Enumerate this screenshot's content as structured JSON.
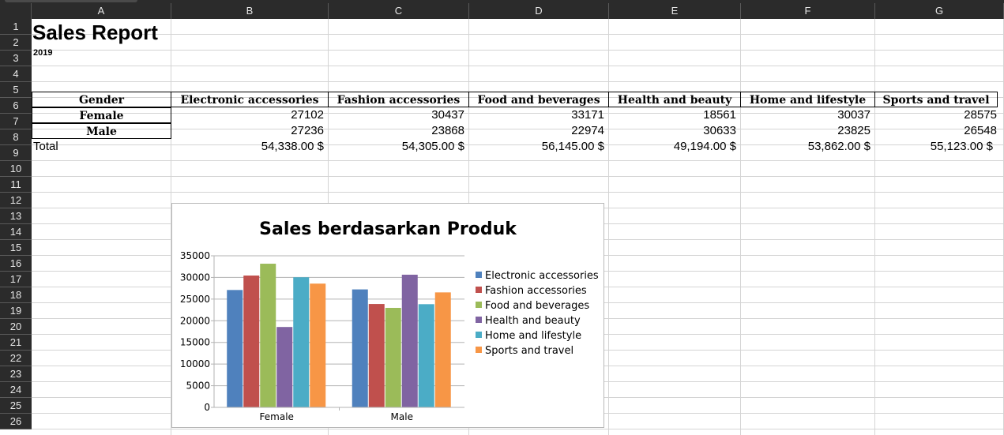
{
  "sheet": {
    "columns": [
      "A",
      "B",
      "C",
      "D",
      "E",
      "F",
      "G"
    ],
    "rows": [
      "1",
      "2",
      "3",
      "4",
      "5",
      "6",
      "7",
      "8",
      "9",
      "10",
      "11",
      "12",
      "13",
      "14",
      "15",
      "16",
      "17",
      "18",
      "19",
      "20",
      "21",
      "22",
      "23",
      "24",
      "25",
      "26"
    ],
    "title": "Sales Report",
    "subtitle": "2019",
    "table": {
      "header": [
        "Gender",
        "Electronic accessories",
        "Fashion accessories",
        "Food and beverages",
        "Health and beauty",
        "Home and lifestyle",
        "Sports and travel"
      ],
      "rows": [
        {
          "label": "Female",
          "values": [
            "27102",
            "30437",
            "33171",
            "18561",
            "30037",
            "28575"
          ]
        },
        {
          "label": "Male",
          "values": [
            "27236",
            "23868",
            "22974",
            "30633",
            "23825",
            "26548"
          ]
        }
      ],
      "total_label": "Total",
      "totals": [
        "54,338.00 $",
        "54,305.00 $",
        "56,145.00 $",
        "49,194.00 $",
        "53,862.00 $",
        "55,123.00 $"
      ]
    }
  },
  "chart_data": {
    "type": "bar",
    "title": "Sales berdasarkan Produk",
    "categories": [
      "Female",
      "Male"
    ],
    "series": [
      {
        "name": "Electronic accessories",
        "color": "#4f81bd",
        "values": [
          27102,
          27236
        ]
      },
      {
        "name": "Fashion accessories",
        "color": "#c0504d",
        "values": [
          30437,
          23868
        ]
      },
      {
        "name": "Food and beverages",
        "color": "#9bbb59",
        "values": [
          33171,
          22974
        ]
      },
      {
        "name": "Health and beauty",
        "color": "#8064a2",
        "values": [
          18561,
          30633
        ]
      },
      {
        "name": "Home and lifestyle",
        "color": "#4bacc6",
        "values": [
          30037,
          23825
        ]
      },
      {
        "name": "Sports and travel",
        "color": "#f79646",
        "values": [
          28575,
          26548
        ]
      }
    ],
    "yticks": [
      "35000",
      "30000",
      "25000",
      "20000",
      "15000",
      "10000",
      "5000",
      "0"
    ],
    "ylim": [
      0,
      35000
    ],
    "legend": "right",
    "grid": true
  }
}
